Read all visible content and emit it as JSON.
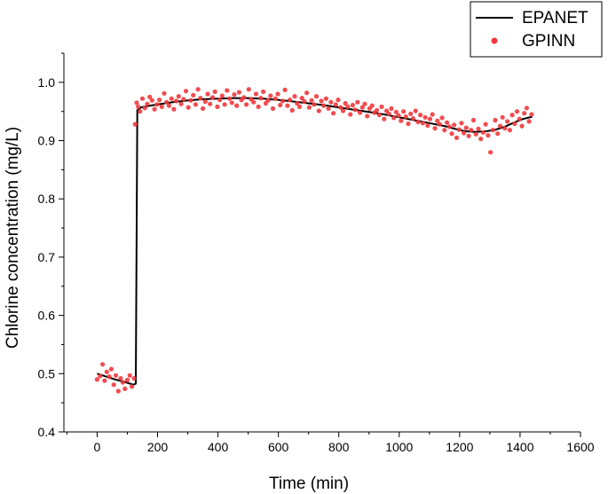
{
  "chart_data": {
    "type": "line",
    "title": "",
    "xlabel": "Time (min)",
    "ylabel": "Chlorine concentration (mg/L)",
    "xlim": [
      -110,
      1600
    ],
    "ylim": [
      0.4,
      1.05
    ],
    "xticks": [
      0,
      200,
      400,
      600,
      800,
      1000,
      1200,
      1400,
      1600
    ],
    "xtick_labels": [
      "0",
      "200",
      "400",
      "600",
      "800",
      "1000",
      "1200",
      "1400",
      "1600"
    ],
    "yticks": [
      0.4,
      0.5,
      0.6,
      0.7,
      0.8,
      0.9,
      1.0
    ],
    "ytick_labels": [
      "0.4",
      "0.5",
      "0.6",
      "0.7",
      "0.8",
      "0.9",
      "1.0"
    ],
    "grid": false,
    "legend_position": "top-right",
    "colors": {
      "line": "#000000",
      "points": "#f0383c"
    },
    "series": [
      {
        "name": "EPANET",
        "style": "line",
        "x": [
          0,
          30,
          60,
          90,
          120,
          128,
          133,
          145,
          175,
          200,
          250,
          300,
          350,
          400,
          450,
          500,
          550,
          600,
          650,
          700,
          750,
          800,
          850,
          900,
          950,
          1000,
          1050,
          1100,
          1150,
          1200,
          1220,
          1250,
          1290,
          1320,
          1350,
          1380,
          1410,
          1440
        ],
        "y": [
          0.5,
          0.495,
          0.49,
          0.486,
          0.481,
          0.483,
          0.952,
          0.957,
          0.96,
          0.962,
          0.966,
          0.969,
          0.971,
          0.972,
          0.973,
          0.973,
          0.972,
          0.97,
          0.967,
          0.964,
          0.961,
          0.957,
          0.953,
          0.949,
          0.945,
          0.94,
          0.935,
          0.93,
          0.925,
          0.918,
          0.916,
          0.915,
          0.916,
          0.919,
          0.924,
          0.931,
          0.937,
          0.941
        ]
      },
      {
        "name": "GPINN",
        "style": "scatter",
        "x": [
          0,
          10,
          18,
          25,
          32,
          40,
          47,
          55,
          62,
          70,
          78,
          85,
          92,
          100,
          108,
          115,
          122,
          126,
          131,
          136,
          142,
          150,
          158,
          166,
          174,
          182,
          190,
          198,
          206,
          214,
          222,
          230,
          238,
          246,
          254,
          262,
          270,
          278,
          286,
          294,
          302,
          310,
          318,
          326,
          334,
          342,
          350,
          358,
          366,
          374,
          382,
          390,
          398,
          406,
          414,
          422,
          430,
          438,
          446,
          454,
          462,
          470,
          478,
          486,
          494,
          502,
          510,
          518,
          526,
          534,
          542,
          550,
          558,
          566,
          574,
          582,
          590,
          598,
          606,
          614,
          622,
          630,
          638,
          646,
          654,
          662,
          670,
          678,
          686,
          694,
          702,
          710,
          718,
          726,
          734,
          742,
          750,
          758,
          766,
          774,
          782,
          790,
          798,
          806,
          814,
          822,
          830,
          838,
          846,
          854,
          862,
          870,
          878,
          886,
          894,
          902,
          910,
          918,
          926,
          934,
          942,
          950,
          958,
          966,
          974,
          982,
          990,
          998,
          1006,
          1014,
          1022,
          1030,
          1038,
          1046,
          1054,
          1062,
          1070,
          1078,
          1086,
          1094,
          1102,
          1110,
          1118,
          1126,
          1134,
          1142,
          1150,
          1158,
          1166,
          1174,
          1182,
          1190,
          1198,
          1206,
          1214,
          1222,
          1230,
          1238,
          1246,
          1254,
          1262,
          1270,
          1278,
          1286,
          1294,
          1302,
          1310,
          1318,
          1326,
          1334,
          1342,
          1350,
          1358,
          1366,
          1374,
          1382,
          1390,
          1398,
          1406,
          1414,
          1422,
          1430,
          1438
        ],
        "y": [
          0.49,
          0.496,
          0.516,
          0.488,
          0.503,
          0.495,
          0.508,
          0.481,
          0.497,
          0.47,
          0.492,
          0.485,
          0.474,
          0.489,
          0.497,
          0.478,
          0.492,
          0.928,
          0.965,
          0.958,
          0.95,
          0.972,
          0.956,
          0.963,
          0.975,
          0.969,
          0.954,
          0.962,
          0.97,
          0.958,
          0.981,
          0.966,
          0.96,
          0.972,
          0.954,
          0.968,
          0.976,
          0.963,
          0.971,
          0.985,
          0.957,
          0.969,
          0.978,
          0.962,
          0.988,
          0.973,
          0.955,
          0.967,
          0.98,
          0.963,
          0.974,
          0.984,
          0.958,
          0.97,
          0.977,
          0.962,
          0.986,
          0.972,
          0.965,
          0.979,
          0.96,
          0.983,
          0.97,
          0.974,
          0.962,
          0.988,
          0.971,
          0.966,
          0.98,
          0.958,
          0.973,
          0.984,
          0.964,
          0.969,
          0.977,
          0.955,
          0.972,
          0.98,
          0.961,
          0.968,
          0.987,
          0.96,
          0.97,
          0.952,
          0.976,
          0.964,
          0.958,
          0.973,
          0.967,
          0.982,
          0.957,
          0.969,
          0.962,
          0.976,
          0.951,
          0.968,
          0.96,
          0.972,
          0.955,
          0.966,
          0.947,
          0.962,
          0.97,
          0.957,
          0.951,
          0.964,
          0.958,
          0.945,
          0.961,
          0.953,
          0.966,
          0.948,
          0.957,
          0.963,
          0.942,
          0.955,
          0.96,
          0.948,
          0.952,
          0.944,
          0.958,
          0.937,
          0.951,
          0.946,
          0.955,
          0.939,
          0.949,
          0.943,
          0.934,
          0.95,
          0.941,
          0.929,
          0.946,
          0.938,
          0.951,
          0.932,
          0.944,
          0.93,
          0.94,
          0.926,
          0.937,
          0.945,
          0.921,
          0.934,
          0.928,
          0.939,
          0.918,
          0.931,
          0.924,
          0.912,
          0.927,
          0.905,
          0.919,
          0.93,
          0.913,
          0.922,
          0.908,
          0.918,
          0.935,
          0.911,
          0.92,
          0.903,
          0.914,
          0.928,
          0.909,
          0.88,
          0.918,
          0.935,
          0.912,
          0.925,
          0.94,
          0.921,
          0.933,
          0.918,
          0.944,
          0.929,
          0.95,
          0.937,
          0.925,
          0.947,
          0.956,
          0.933,
          0.945
        ]
      }
    ]
  }
}
